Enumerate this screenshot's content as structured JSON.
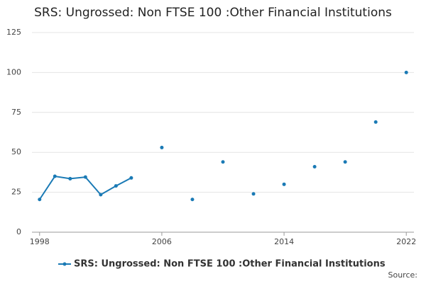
{
  "chart_data": {
    "type": "line",
    "title": "SRS: Ungrossed: Non FTSE 100 :Other Financial Institutions",
    "x": [
      1998,
      1999,
      2000,
      2001,
      2002,
      2003,
      2004,
      2005,
      2006,
      2007,
      2008,
      2009,
      2010,
      2011,
      2012,
      2013,
      2014,
      2015,
      2016,
      2017,
      2018,
      2019,
      2020,
      2021,
      2022
    ],
    "series": [
      {
        "name": "SRS: Ungrossed: Non FTSE 100 :Other Financial Institutions",
        "color": "#1a7ab5",
        "values": [
          20.5,
          35,
          33.5,
          34.5,
          23.5,
          29,
          34,
          null,
          53,
          null,
          20.5,
          null,
          44,
          null,
          24,
          null,
          30,
          null,
          41,
          null,
          44,
          null,
          69,
          null,
          100
        ]
      }
    ],
    "xlim": [
      1997.5,
      2022.5
    ],
    "xticks": [
      1998,
      2006,
      2014,
      2022
    ],
    "ylim": [
      0,
      125
    ],
    "yticks": [
      0,
      25,
      50,
      75,
      100,
      125
    ],
    "grid": true,
    "legend": "bottom",
    "source": "Source:"
  }
}
